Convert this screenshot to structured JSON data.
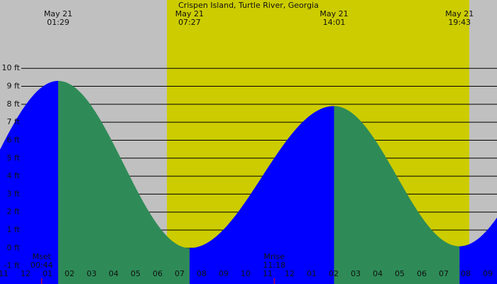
{
  "chart_data": {
    "type": "tide",
    "title": "Crispen Island, Turtle River, Georgia",
    "tides": [
      {
        "date": "May 21",
        "time": "01:29",
        "value": 9.3
      },
      {
        "date": "May 21",
        "time": "07:27",
        "value": 0.0
      },
      {
        "date": "May 21",
        "time": "14:01",
        "value": 7.9
      },
      {
        "date": "May 21",
        "time": "19:43",
        "value": 0.1
      }
    ],
    "moon": [
      {
        "label": "Mset",
        "time": "00:44"
      },
      {
        "label": "Mrise",
        "time": "11:18"
      }
    ],
    "flood_color": "#0000ff",
    "ebb_color": "#2e8b57",
    "ylim": [
      -2,
      13.8
    ],
    "yticks": [
      {
        "value": -1,
        "label": "-1 ft"
      },
      {
        "value": 0,
        "label": "0 ft"
      },
      {
        "value": 1,
        "label": "1 ft"
      },
      {
        "value": 2,
        "label": "2 ft"
      },
      {
        "value": 3,
        "label": "3 ft"
      },
      {
        "value": 4,
        "label": "4 ft"
      },
      {
        "value": 5,
        "label": "5 ft"
      },
      {
        "value": 6,
        "label": "6 ft"
      },
      {
        "value": 7,
        "label": "7 ft"
      },
      {
        "value": 8,
        "label": "8 ft"
      },
      {
        "value": 9,
        "label": "9 ft"
      },
      {
        "value": 10,
        "label": "10 ft"
      }
    ],
    "xlim": [
      -1.16,
      21.42
    ],
    "xticks": [
      {
        "value": -1,
        "label": "11"
      },
      {
        "value": 0,
        "label": "12"
      },
      {
        "value": 1,
        "label": "01"
      },
      {
        "value": 2,
        "label": "02"
      },
      {
        "value": 3,
        "label": "03"
      },
      {
        "value": 4,
        "label": "04"
      },
      {
        "value": 5,
        "label": "05"
      },
      {
        "value": 6,
        "label": "06"
      },
      {
        "value": 7,
        "label": "07"
      },
      {
        "value": 8,
        "label": "08"
      },
      {
        "value": 9,
        "label": "09"
      },
      {
        "value": 10,
        "label": "10"
      },
      {
        "value": 11,
        "label": "11"
      },
      {
        "value": 12,
        "label": "12"
      },
      {
        "value": 13,
        "label": "01"
      },
      {
        "value": 14,
        "label": "02"
      },
      {
        "value": 15,
        "label": "03"
      },
      {
        "value": 16,
        "label": "04"
      },
      {
        "value": 17,
        "label": "05"
      },
      {
        "value": 18,
        "label": "06"
      },
      {
        "value": 19,
        "label": "07"
      },
      {
        "value": 20,
        "label": "08"
      },
      {
        "value": 21,
        "label": "09"
      }
    ]
  }
}
